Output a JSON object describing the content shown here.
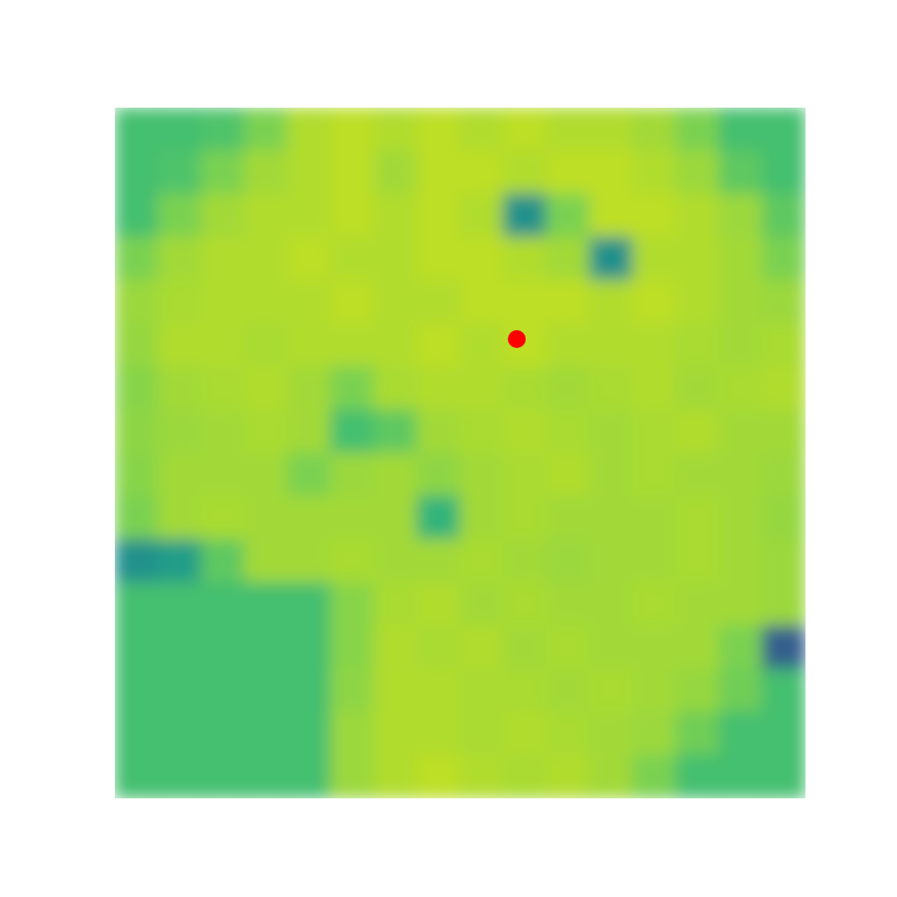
{
  "chart_data": {
    "type": "heatmap",
    "xlim": [
      0,
      1
    ],
    "ylim": [
      1,
      0
    ],
    "tick_labels": false,
    "grid": false,
    "color_range": [
      0,
      1
    ],
    "cells": [
      [
        0.7,
        0.7,
        0.72,
        0.8,
        0.88,
        0.9,
        0.88,
        0.9,
        0.88,
        0.9,
        0.88,
        0.88,
        0.86,
        0.8,
        0.7,
        0.7
      ],
      [
        0.7,
        0.72,
        0.8,
        0.86,
        0.88,
        0.9,
        0.86,
        0.9,
        0.9,
        0.88,
        0.9,
        0.9,
        0.88,
        0.85,
        0.75,
        0.7
      ],
      [
        0.7,
        0.8,
        0.86,
        0.88,
        0.88,
        0.9,
        0.88,
        0.9,
        0.88,
        0.5,
        0.8,
        0.9,
        0.9,
        0.88,
        0.85,
        0.75
      ],
      [
        0.8,
        0.86,
        0.88,
        0.88,
        0.9,
        0.88,
        0.88,
        0.9,
        0.9,
        0.88,
        0.86,
        0.5,
        0.88,
        0.88,
        0.86,
        0.8
      ],
      [
        0.85,
        0.87,
        0.88,
        0.88,
        0.88,
        0.9,
        0.88,
        0.88,
        0.9,
        0.9,
        0.9,
        0.88,
        0.9,
        0.88,
        0.86,
        0.85
      ],
      [
        0.84,
        0.88,
        0.88,
        0.87,
        0.88,
        0.88,
        0.88,
        0.9,
        0.88,
        0.9,
        0.88,
        0.88,
        0.88,
        0.87,
        0.86,
        0.87
      ],
      [
        0.82,
        0.86,
        0.87,
        0.88,
        0.86,
        0.8,
        0.87,
        0.88,
        0.88,
        0.87,
        0.86,
        0.87,
        0.88,
        0.86,
        0.87,
        0.88
      ],
      [
        0.83,
        0.85,
        0.86,
        0.87,
        0.86,
        0.7,
        0.75,
        0.86,
        0.87,
        0.88,
        0.87,
        0.86,
        0.87,
        0.88,
        0.86,
        0.86
      ],
      [
        0.82,
        0.86,
        0.86,
        0.86,
        0.8,
        0.85,
        0.86,
        0.83,
        0.86,
        0.87,
        0.88,
        0.86,
        0.87,
        0.86,
        0.86,
        0.85
      ],
      [
        0.8,
        0.86,
        0.87,
        0.86,
        0.86,
        0.86,
        0.86,
        0.65,
        0.86,
        0.87,
        0.86,
        0.86,
        0.86,
        0.87,
        0.86,
        0.84
      ],
      [
        0.5,
        0.55,
        0.75,
        0.86,
        0.86,
        0.87,
        0.86,
        0.86,
        0.87,
        0.86,
        0.85,
        0.86,
        0.86,
        0.87,
        0.86,
        0.85
      ],
      [
        0.7,
        0.7,
        0.7,
        0.7,
        0.7,
        0.82,
        0.87,
        0.88,
        0.86,
        0.87,
        0.86,
        0.86,
        0.87,
        0.86,
        0.86,
        0.85
      ],
      [
        0.7,
        0.7,
        0.7,
        0.7,
        0.7,
        0.82,
        0.88,
        0.87,
        0.88,
        0.86,
        0.87,
        0.86,
        0.86,
        0.86,
        0.8,
        0.3
      ],
      [
        0.7,
        0.7,
        0.7,
        0.7,
        0.7,
        0.83,
        0.88,
        0.88,
        0.87,
        0.87,
        0.86,
        0.87,
        0.86,
        0.84,
        0.78,
        0.7
      ],
      [
        0.7,
        0.7,
        0.7,
        0.7,
        0.7,
        0.85,
        0.88,
        0.88,
        0.87,
        0.88,
        0.87,
        0.86,
        0.85,
        0.78,
        0.7,
        0.7
      ],
      [
        0.7,
        0.7,
        0.7,
        0.7,
        0.7,
        0.85,
        0.88,
        0.9,
        0.88,
        0.87,
        0.88,
        0.86,
        0.8,
        0.7,
        0.7,
        0.7
      ]
    ],
    "points": {
      "x": [
        0.582
      ],
      "y": [
        0.335
      ],
      "color": "#ff0000",
      "marker": "circle"
    }
  }
}
